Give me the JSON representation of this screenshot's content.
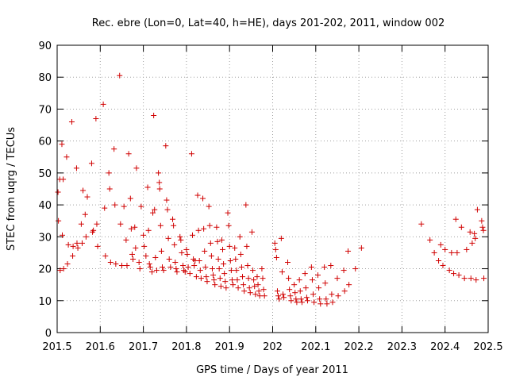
{
  "chart_data": {
    "type": "scatter",
    "title": "Rec. ebre (Lon=0, Lat=40, h=HE), days 201-202, 2011, window 002",
    "xlabel": "GPS time / Days of year 2011",
    "ylabel": "STEC from uqrg / TECUs",
    "xlim": [
      201.5,
      202.5
    ],
    "ylim": [
      0,
      90
    ],
    "xticks": [
      201.5,
      201.6,
      201.7,
      201.8,
      201.9,
      202,
      202.1,
      202.2,
      202.3,
      202.4,
      202.5
    ],
    "xtick_labels": [
      "201.5",
      "201.6",
      "201.7",
      "201.8",
      "201.9",
      "202",
      "202.1",
      "202.2",
      "202.3",
      "202.4",
      "202.5"
    ],
    "yticks": [
      0,
      10,
      20,
      30,
      40,
      50,
      60,
      70,
      80,
      90
    ],
    "ytick_labels": [
      "0",
      "10",
      "20",
      "30",
      "40",
      "50",
      "60",
      "70",
      "80",
      "90"
    ],
    "grid": true,
    "marker": "plus",
    "color": "#d00000",
    "points": [
      [
        201.502,
        44.0
      ],
      [
        201.503,
        35.0
      ],
      [
        201.506,
        48.0
      ],
      [
        201.507,
        19.5
      ],
      [
        201.511,
        59.0
      ],
      [
        201.512,
        30.5
      ],
      [
        201.514,
        48.0
      ],
      [
        201.515,
        20.0
      ],
      [
        201.522,
        55.0
      ],
      [
        201.524,
        21.5
      ],
      [
        201.526,
        27.5
      ],
      [
        201.534,
        66.0
      ],
      [
        201.536,
        24.0
      ],
      [
        201.537,
        27.0
      ],
      [
        201.545,
        51.5
      ],
      [
        201.546,
        28.0
      ],
      [
        201.548,
        26.5
      ],
      [
        201.556,
        34.0
      ],
      [
        201.558,
        28.0
      ],
      [
        201.56,
        44.5
      ],
      [
        201.565,
        37.0
      ],
      [
        201.567,
        30.0
      ],
      [
        201.57,
        42.5
      ],
      [
        201.58,
        53.0
      ],
      [
        201.582,
        31.5
      ],
      [
        201.584,
        32.0
      ],
      [
        201.59,
        67.0
      ],
      [
        201.592,
        34.0
      ],
      [
        201.594,
        27.0
      ],
      [
        201.607,
        71.5
      ],
      [
        201.61,
        39.0
      ],
      [
        201.612,
        24.0
      ],
      [
        201.62,
        50.0
      ],
      [
        201.622,
        45.0
      ],
      [
        201.624,
        22.0
      ],
      [
        201.632,
        57.5
      ],
      [
        201.634,
        40.0
      ],
      [
        201.636,
        21.5
      ],
      [
        201.645,
        80.5
      ],
      [
        201.647,
        34.0
      ],
      [
        201.65,
        21.0
      ],
      [
        201.655,
        39.5
      ],
      [
        201.66,
        29.0
      ],
      [
        201.662,
        21.0
      ],
      [
        201.666,
        56.0
      ],
      [
        201.67,
        42.0
      ],
      [
        201.672,
        32.5
      ],
      [
        201.674,
        24.5
      ],
      [
        201.676,
        23.0
      ],
      [
        201.68,
        33.0
      ],
      [
        201.682,
        26.5
      ],
      [
        201.684,
        51.5
      ],
      [
        201.69,
        22.0
      ],
      [
        201.692,
        20.0
      ],
      [
        201.695,
        39.5
      ],
      [
        201.7,
        30.5
      ],
      [
        201.702,
        27.0
      ],
      [
        201.706,
        24.0
      ],
      [
        201.71,
        45.5
      ],
      [
        201.712,
        32.0
      ],
      [
        201.714,
        21.5
      ],
      [
        201.716,
        20.5
      ],
      [
        201.72,
        19.0
      ],
      [
        201.722,
        37.5
      ],
      [
        201.724,
        68.0
      ],
      [
        201.726,
        38.5
      ],
      [
        201.728,
        23.5
      ],
      [
        201.731,
        19.5
      ],
      [
        201.735,
        50.0
      ],
      [
        201.737,
        47.0
      ],
      [
        201.738,
        45.0
      ],
      [
        201.74,
        33.5
      ],
      [
        201.742,
        25.5
      ],
      [
        201.744,
        20.5
      ],
      [
        201.747,
        19.5
      ],
      [
        201.752,
        58.5
      ],
      [
        201.754,
        41.5
      ],
      [
        201.756,
        38.5
      ],
      [
        201.758,
        29.5
      ],
      [
        201.76,
        23.0
      ],
      [
        201.763,
        20.5
      ],
      [
        201.768,
        35.5
      ],
      [
        201.77,
        33.5
      ],
      [
        201.772,
        27.5
      ],
      [
        201.774,
        22.0
      ],
      [
        201.776,
        20.0
      ],
      [
        201.778,
        19.0
      ],
      [
        201.785,
        30.0
      ],
      [
        201.787,
        29.0
      ],
      [
        201.789,
        25.0
      ],
      [
        201.792,
        21.0
      ],
      [
        201.794,
        19.5
      ],
      [
        201.797,
        19.0
      ],
      [
        201.8,
        26.0
      ],
      [
        201.802,
        24.5
      ],
      [
        201.804,
        20.5
      ],
      [
        201.808,
        18.5
      ],
      [
        201.812,
        56.0
      ],
      [
        201.814,
        30.5
      ],
      [
        201.816,
        23.0
      ],
      [
        201.818,
        21.0
      ],
      [
        201.82,
        22.5
      ],
      [
        201.823,
        17.5
      ],
      [
        201.826,
        43.0
      ],
      [
        201.828,
        32.0
      ],
      [
        201.83,
        22.5
      ],
      [
        201.832,
        19.5
      ],
      [
        201.834,
        17.0
      ],
      [
        201.838,
        42.0
      ],
      [
        201.84,
        32.5
      ],
      [
        201.842,
        25.5
      ],
      [
        201.844,
        20.5
      ],
      [
        201.846,
        17.5
      ],
      [
        201.848,
        16.0
      ],
      [
        201.852,
        39.5
      ],
      [
        201.854,
        33.5
      ],
      [
        201.856,
        28.0
      ],
      [
        201.858,
        24.0
      ],
      [
        201.86,
        20.0
      ],
      [
        201.862,
        18.0
      ],
      [
        201.864,
        16.5
      ],
      [
        201.866,
        15.0
      ],
      [
        201.87,
        33.0
      ],
      [
        201.872,
        28.5
      ],
      [
        201.874,
        23.0
      ],
      [
        201.876,
        20.0
      ],
      [
        201.878,
        17.0
      ],
      [
        201.88,
        14.5
      ],
      [
        201.882,
        29.0
      ],
      [
        201.884,
        26.0
      ],
      [
        201.886,
        21.5
      ],
      [
        201.888,
        18.5
      ],
      [
        201.89,
        16.0
      ],
      [
        201.892,
        14.0
      ],
      [
        201.896,
        37.5
      ],
      [
        201.898,
        33.5
      ],
      [
        201.9,
        27.0
      ],
      [
        201.902,
        22.5
      ],
      [
        201.904,
        19.5
      ],
      [
        201.906,
        16.5
      ],
      [
        201.908,
        15.0
      ],
      [
        201.912,
        26.5
      ],
      [
        201.914,
        23.0
      ],
      [
        201.916,
        19.5
      ],
      [
        201.918,
        16.5
      ],
      [
        201.92,
        14.0
      ],
      [
        201.924,
        30.0
      ],
      [
        201.926,
        24.5
      ],
      [
        201.928,
        20.5
      ],
      [
        201.93,
        17.5
      ],
      [
        201.932,
        15.0
      ],
      [
        201.934,
        13.0
      ],
      [
        201.938,
        40.0
      ],
      [
        201.94,
        27.0
      ],
      [
        201.942,
        21.0
      ],
      [
        201.944,
        17.0
      ],
      [
        201.946,
        14.0
      ],
      [
        201.948,
        12.5
      ],
      [
        201.952,
        31.5
      ],
      [
        201.954,
        19.5
      ],
      [
        201.956,
        16.5
      ],
      [
        201.958,
        14.5
      ],
      [
        201.96,
        12.0
      ],
      [
        201.964,
        17.5
      ],
      [
        201.966,
        15.0
      ],
      [
        201.968,
        13.0
      ],
      [
        201.97,
        11.5
      ],
      [
        201.975,
        20.0
      ],
      [
        201.977,
        17.0
      ],
      [
        201.979,
        13.5
      ],
      [
        201.981,
        11.5
      ],
      [
        202.005,
        28.0
      ],
      [
        202.007,
        26.0
      ],
      [
        202.009,
        23.5
      ],
      [
        202.011,
        13.0
      ],
      [
        202.013,
        11.5
      ],
      [
        202.015,
        10.5
      ],
      [
        202.02,
        29.5
      ],
      [
        202.022,
        19.0
      ],
      [
        202.024,
        12.0
      ],
      [
        202.026,
        11.0
      ],
      [
        202.035,
        22.0
      ],
      [
        202.037,
        17.0
      ],
      [
        202.039,
        13.5
      ],
      [
        202.041,
        11.5
      ],
      [
        202.043,
        10.0
      ],
      [
        202.05,
        15.0
      ],
      [
        202.052,
        12.5
      ],
      [
        202.054,
        10.5
      ],
      [
        202.056,
        9.5
      ],
      [
        202.062,
        16.5
      ],
      [
        202.064,
        13.0
      ],
      [
        202.066,
        10.5
      ],
      [
        202.068,
        9.5
      ],
      [
        202.075,
        18.5
      ],
      [
        202.077,
        14.0
      ],
      [
        202.079,
        11.0
      ],
      [
        202.081,
        10.0
      ],
      [
        202.09,
        20.5
      ],
      [
        202.092,
        16.5
      ],
      [
        202.094,
        12.0
      ],
      [
        202.096,
        9.5
      ],
      [
        202.105,
        18.0
      ],
      [
        202.107,
        14.0
      ],
      [
        202.109,
        10.5
      ],
      [
        202.111,
        9.0
      ],
      [
        202.12,
        20.5
      ],
      [
        202.122,
        15.5
      ],
      [
        202.124,
        10.5
      ],
      [
        202.126,
        9.0
      ],
      [
        202.135,
        21.0
      ],
      [
        202.137,
        12.0
      ],
      [
        202.139,
        9.5
      ],
      [
        202.15,
        17.0
      ],
      [
        202.152,
        11.5
      ],
      [
        202.165,
        19.5
      ],
      [
        202.167,
        13.0
      ],
      [
        202.175,
        25.5
      ],
      [
        202.177,
        15.0
      ],
      [
        202.192,
        20.0
      ],
      [
        202.206,
        26.5
      ],
      [
        202.345,
        34.0
      ],
      [
        202.365,
        29.0
      ],
      [
        202.375,
        25.0
      ],
      [
        202.385,
        22.5
      ],
      [
        202.39,
        27.5
      ],
      [
        202.395,
        21.0
      ],
      [
        202.4,
        26.0
      ],
      [
        202.41,
        19.5
      ],
      [
        202.415,
        25.0
      ],
      [
        202.42,
        18.5
      ],
      [
        202.425,
        35.5
      ],
      [
        202.428,
        25.0
      ],
      [
        202.432,
        18.0
      ],
      [
        202.438,
        33.0
      ],
      [
        202.445,
        17.0
      ],
      [
        202.45,
        26.0
      ],
      [
        202.458,
        31.5
      ],
      [
        202.46,
        17.0
      ],
      [
        202.463,
        28.0
      ],
      [
        202.468,
        31.0
      ],
      [
        202.47,
        29.5
      ],
      [
        202.472,
        16.5
      ],
      [
        202.475,
        38.5
      ],
      [
        202.485,
        35.0
      ],
      [
        202.487,
        33.0
      ],
      [
        202.489,
        32.0
      ],
      [
        202.49,
        17.0
      ]
    ]
  }
}
